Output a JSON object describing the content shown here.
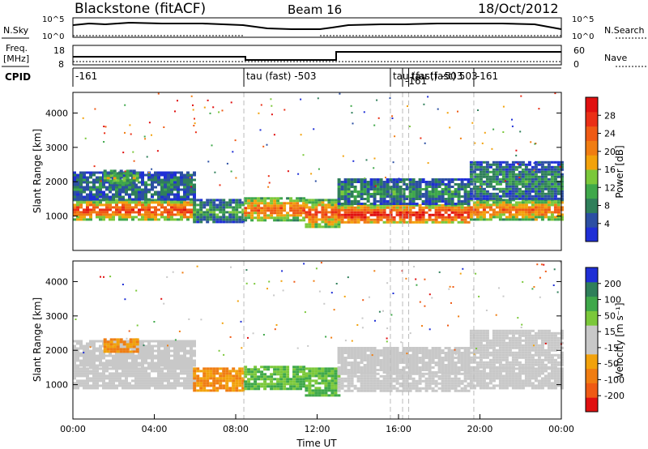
{
  "header": {
    "station": "Blackstone (fitACF)",
    "beam": "Beam 16",
    "date": "18/Oct/2012"
  },
  "top_panels": {
    "nsky_label": "N.Sky",
    "nsky_ticks": [
      "10^5",
      "10^0"
    ],
    "nsearch_label": "N.Search",
    "nsearch_ticks": [
      "10^5",
      "10^0"
    ],
    "freq_label_1": "Freq.",
    "freq_label_2": "[MHz]",
    "freq_ticks": [
      "18",
      "8"
    ],
    "nave_label": "Nave",
    "nave_ticks": [
      "60",
      "0"
    ],
    "cpid_label": "CPID",
    "cpid_segments": [
      {
        "start_hour": 0.0,
        "label": "-161"
      },
      {
        "start_hour": 8.4,
        "label": "tau (fast) -503"
      },
      {
        "start_hour": 15.6,
        "label": "tau (fast) -503"
      },
      {
        "start_hour": 16.2,
        "label": "-161"
      },
      {
        "start_hour": 16.5,
        "label": "tau (fast) 503"
      },
      {
        "start_hour": 19.7,
        "label": "-161"
      }
    ]
  },
  "chart_data": [
    {
      "type": "heatmap",
      "name": "power",
      "xlabel": "",
      "ylabel": "Slant Range [km]",
      "xlim_hours": [
        0,
        24
      ],
      "ylim": [
        0,
        4600
      ],
      "yticks": [
        1000,
        2000,
        3000,
        4000
      ],
      "colorbar": {
        "label": "Power [dB]",
        "ticks": [
          "4",
          "8",
          "12",
          "16",
          "20",
          "24",
          "28"
        ],
        "colors": [
          "#1f2fd6",
          "#2c4fa3",
          "#2f7f5a",
          "#3fa84a",
          "#7bc83a",
          "#f2a20c",
          "#f07d12",
          "#ef5a14",
          "#ea2f16",
          "#e01010"
        ]
      },
      "bands": [
        {
          "t0": 0.0,
          "t1": 5.9,
          "r0": 900,
          "r1": 1500,
          "level": 0.85
        },
        {
          "t0": 0.0,
          "t1": 5.9,
          "r0": 1500,
          "r1": 2300,
          "level": 0.25
        },
        {
          "t0": 1.5,
          "t1": 3.1,
          "r0": 1950,
          "r1": 2350,
          "level": 0.45
        },
        {
          "t0": 5.9,
          "t1": 8.4,
          "r0": 850,
          "r1": 1500,
          "level": 0.35
        },
        {
          "t0": 8.4,
          "t1": 11.4,
          "r0": 900,
          "r1": 1550,
          "level": 0.75
        },
        {
          "t0": 11.4,
          "t1": 13.0,
          "r0": 700,
          "r1": 1500,
          "level": 0.8
        },
        {
          "t0": 13.0,
          "t1": 19.5,
          "r0": 800,
          "r1": 1350,
          "level": 0.95
        },
        {
          "t0": 13.0,
          "t1": 19.5,
          "r0": 1350,
          "r1": 2100,
          "level": 0.3
        },
        {
          "t0": 19.5,
          "t1": 24.0,
          "r0": 900,
          "r1": 1500,
          "level": 0.75
        },
        {
          "t0": 19.5,
          "t1": 24.0,
          "r0": 1500,
          "r1": 2600,
          "level": 0.3
        }
      ]
    },
    {
      "type": "heatmap",
      "name": "velocity",
      "xlabel": "Time UT",
      "ylabel": "Slant Range [km]",
      "xlim_hours": [
        0,
        24
      ],
      "ylim": [
        0,
        4600
      ],
      "yticks": [
        1000,
        2000,
        3000,
        4000
      ],
      "xticks": [
        "00:00",
        "04:00",
        "08:00",
        "12:00",
        "16:00",
        "20:00",
        "00:00"
      ],
      "colorbar": {
        "label": "Velocity [m s⁻¹]",
        "ticks": [
          "-200",
          "-100",
          "-50",
          "-15",
          "15",
          "50",
          "100",
          "200"
        ],
        "colors": [
          "#e01010",
          "#ef5a14",
          "#f07d12",
          "#f2a20c",
          "#c8c8c8",
          "#c8c8c8",
          "#7bc83a",
          "#3fa84a",
          "#2f7f5a",
          "#1f2fd6"
        ]
      },
      "bands": [
        {
          "t0": 0.0,
          "t1": 5.9,
          "r0": 900,
          "r1": 1500,
          "level": 0.5
        },
        {
          "t0": 0.0,
          "t1": 5.9,
          "r0": 1500,
          "r1": 2300,
          "level": 0.5
        },
        {
          "t0": 1.5,
          "t1": 3.1,
          "r0": 1950,
          "r1": 2350,
          "level": 0.3
        },
        {
          "t0": 5.9,
          "t1": 8.4,
          "r0": 850,
          "r1": 1500,
          "level": 0.3
        },
        {
          "t0": 8.4,
          "t1": 11.4,
          "r0": 900,
          "r1": 1550,
          "level": 0.7
        },
        {
          "t0": 11.4,
          "t1": 13.0,
          "r0": 700,
          "r1": 1500,
          "level": 0.7
        },
        {
          "t0": 13.0,
          "t1": 19.5,
          "r0": 800,
          "r1": 1350,
          "level": 0.5
        },
        {
          "t0": 13.0,
          "t1": 19.5,
          "r0": 1350,
          "r1": 2100,
          "level": 0.5
        },
        {
          "t0": 19.5,
          "t1": 24.0,
          "r0": 900,
          "r1": 1500,
          "level": 0.5
        },
        {
          "t0": 19.5,
          "t1": 24.0,
          "r0": 1500,
          "r1": 2600,
          "level": 0.5
        }
      ]
    }
  ]
}
